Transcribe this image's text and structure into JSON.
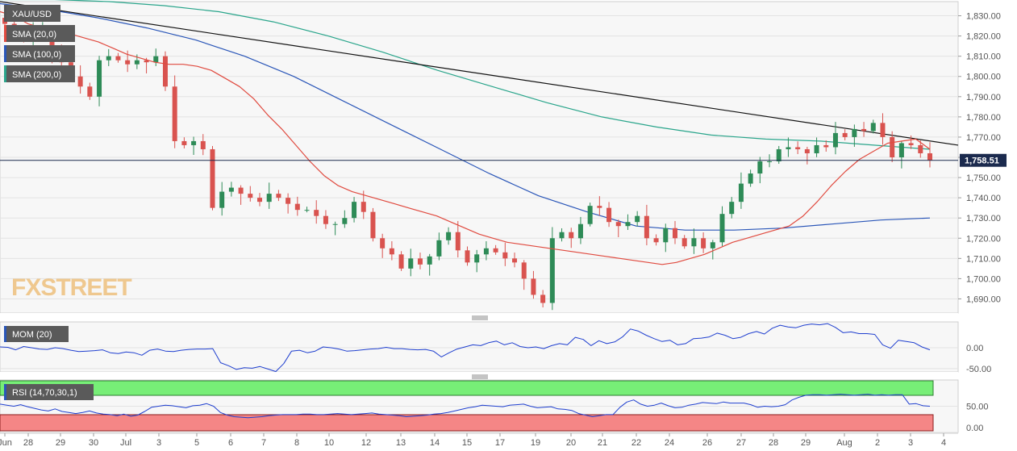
{
  "chart_data": {
    "type": "candlestick",
    "symbol": "XAU/USD",
    "price_axis": {
      "ticks": [
        1690,
        1700,
        1710,
        1720,
        1730,
        1740,
        1750,
        1760,
        1770,
        1780,
        1790,
        1800,
        1810,
        1820,
        1830
      ],
      "tick_labels": [
        "1,690.00",
        "1,700.00",
        "1,710.00",
        "1,720.00",
        "1,730.00",
        "1,740.00",
        "1,750.00",
        "1,760.00",
        "1,770.00",
        "1,780.00",
        "1,790.00",
        "1,800.00",
        "1,810.00",
        "1,820.00",
        "1,830.00"
      ],
      "range": [
        1683,
        1837
      ]
    },
    "current_price": 1758.51,
    "current_price_label": "1,758.51",
    "x_labels": [
      "Jun",
      "28",
      "29",
      "30",
      "Jul",
      "3",
      "5",
      "6",
      "7",
      "8",
      "10",
      "12",
      "13",
      "14",
      "15",
      "17",
      "19",
      "20",
      "21",
      "22",
      "24",
      "26",
      "27",
      "28",
      "29",
      "Aug",
      "2",
      "3",
      "4"
    ],
    "legend": [
      {
        "label": "XAU/USD",
        "color": "#555555"
      },
      {
        "label": "SMA (20,0)",
        "color": "#e04a3f"
      },
      {
        "label": "SMA (100,0)",
        "color": "#2a56b8"
      },
      {
        "label": "SMA (200,0)",
        "color": "#2aa58b"
      }
    ],
    "candle_colors": {
      "up": "#2e8b57",
      "down": "#d9534f"
    },
    "close_path": [
      1826,
      1820,
      1818,
      1822,
      1824,
      1812,
      1807,
      1800,
      1795,
      1790,
      1808,
      1810,
      1808,
      1806,
      1808,
      1807,
      1810,
      1795,
      1768,
      1766,
      1768,
      1764,
      1735,
      1743,
      1745,
      1742,
      1740,
      1738,
      1742,
      1740,
      1737,
      1734,
      1734,
      1731,
      1727,
      1727,
      1730,
      1738,
      1733,
      1720,
      1715,
      1712,
      1705,
      1710,
      1707,
      1711,
      1719,
      1723,
      1714,
      1708,
      1712,
      1715,
      1713,
      1710,
      1708,
      1700,
      1692,
      1688,
      1720,
      1723,
      1720,
      1727,
      1736,
      1735,
      1728,
      1726,
      1728,
      1731,
      1720,
      1718,
      1725,
      1720,
      1716,
      1720,
      1715,
      1718,
      1732,
      1738,
      1747,
      1752,
      1758,
      1758,
      1764,
      1765,
      1764,
      1762,
      1766,
      1765,
      1772,
      1770,
      1774,
      1773,
      1777,
      1770,
      1760,
      1767,
      1766,
      1762,
      1758.51
    ],
    "sma_20": [
      1832,
      1830,
      1826,
      1824,
      1823,
      1821,
      1819,
      1817,
      1814,
      1811,
      1809,
      1807,
      1806,
      1806,
      1805,
      1803,
      1799,
      1795,
      1789,
      1781,
      1774,
      1766,
      1758,
      1751,
      1746,
      1743,
      1741,
      1739,
      1737,
      1735,
      1733,
      1731,
      1728,
      1725,
      1722,
      1720,
      1718,
      1717,
      1716,
      1715,
      1714,
      1713,
      1712,
      1711,
      1710,
      1709,
      1708,
      1707,
      1708,
      1710,
      1712,
      1715,
      1718,
      1720,
      1722,
      1724,
      1726,
      1731,
      1738,
      1746,
      1753,
      1759,
      1763,
      1767,
      1768,
      1769,
      1764
    ],
    "sma_100": [
      1836,
      1833,
      1829,
      1824,
      1818,
      1810,
      1800,
      1788,
      1776,
      1764,
      1752,
      1741,
      1733,
      1726,
      1724,
      1724,
      1725,
      1727,
      1729,
      1730
    ],
    "sma_200": [
      1838,
      1838,
      1837,
      1835,
      1832,
      1827,
      1820,
      1812,
      1803,
      1795,
      1787,
      1780,
      1775,
      1771,
      1769,
      1768,
      1766,
      1764
    ],
    "trendline": [
      1837,
      1766
    ],
    "mom": {
      "label": "MOM (20)",
      "ticks": [
        0,
        -50
      ],
      "tick_labels": [
        "0.00",
        "-50.00"
      ],
      "range": [
        -58,
        62
      ],
      "values": [
        2,
        1,
        -5,
        3,
        0,
        -3,
        -4,
        0,
        -2,
        -6,
        -9,
        -8,
        -7,
        -5,
        -12,
        -14,
        -10,
        -12,
        -18,
        -6,
        -3,
        -8,
        -9,
        -6,
        -4,
        -3,
        -3,
        -2,
        -36,
        -43,
        -52,
        -48,
        -49,
        -45,
        -51,
        -57,
        -38,
        -8,
        -6,
        -12,
        -8,
        2,
        0,
        -3,
        -8,
        -7,
        -5,
        -3,
        -2,
        1,
        -2,
        -2,
        -4,
        -5,
        -4,
        -8,
        -22,
        -12,
        -3,
        2,
        7,
        5,
        12,
        16,
        7,
        12,
        3,
        0,
        2,
        -2,
        5,
        10,
        7,
        25,
        20,
        5,
        17,
        10,
        14,
        26,
        45,
        40,
        30,
        22,
        15,
        18,
        7,
        10,
        22,
        23,
        26,
        35,
        30,
        22,
        25,
        34,
        39,
        33,
        47,
        54,
        50,
        48,
        54,
        57,
        55,
        58,
        49,
        36,
        38,
        34,
        34,
        32,
        7,
        -1,
        18,
        15,
        12,
        2,
        -5
      ]
    },
    "rsi": {
      "label": "RSI (14,70,30,1)",
      "ticks": [
        50,
        0
      ],
      "tick_labels": [
        "50.00",
        "0.00"
      ],
      "range": [
        0,
        100
      ],
      "overbought": 70,
      "oversold": 30,
      "overbought_color": "#77ee77",
      "oversold_color": "#f58686",
      "values": [
        54,
        52,
        50,
        53,
        49,
        46,
        43,
        41,
        45,
        40,
        38,
        36,
        38,
        41,
        37,
        35,
        34,
        32,
        35,
        31,
        33,
        40,
        48,
        50,
        52,
        51,
        49,
        47,
        51,
        52,
        55,
        50,
        38,
        33,
        30,
        29,
        28,
        29,
        30,
        32,
        33,
        34,
        34,
        34,
        35,
        35,
        34,
        34,
        35,
        36,
        35,
        34,
        35,
        36,
        37,
        35,
        34,
        33,
        32,
        30,
        31,
        32,
        33,
        35,
        36,
        38,
        41,
        44,
        47,
        49,
        52,
        51,
        50,
        49,
        52,
        53,
        54,
        50,
        47,
        48,
        49,
        45,
        44,
        42,
        36,
        33,
        30,
        32,
        34,
        34,
        48,
        58,
        62,
        54,
        50,
        52,
        56,
        51,
        47,
        48,
        52,
        54,
        57,
        56,
        55,
        58,
        56,
        56,
        56,
        53,
        48,
        50,
        49,
        50,
        53,
        62,
        67,
        71,
        72,
        72,
        71,
        72,
        73,
        72,
        71,
        72,
        73,
        71,
        72,
        71,
        72,
        72,
        54,
        55,
        51,
        50
      ]
    }
  },
  "watermark": "FXSTREET"
}
